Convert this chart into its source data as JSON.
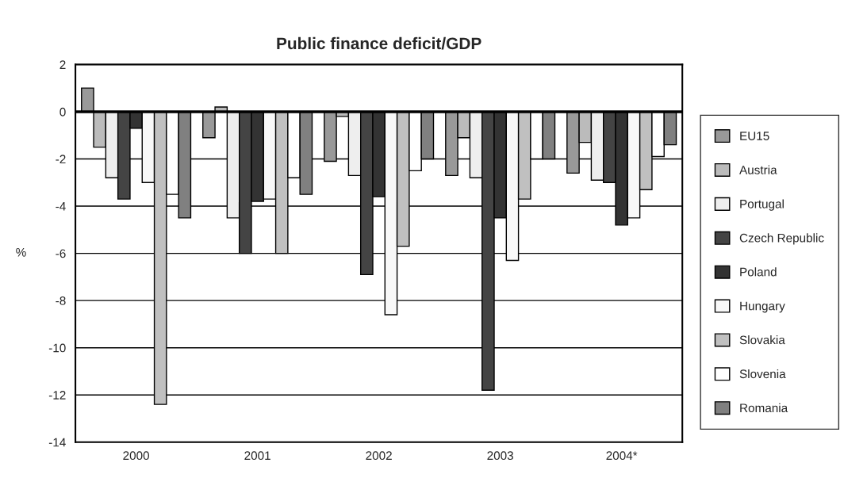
{
  "chart_data": {
    "type": "bar",
    "title": "Public finance deficit/GDP",
    "ylabel": "%",
    "categories": [
      "2000",
      "2001",
      "2002",
      "2003",
      "2004*"
    ],
    "series": [
      {
        "name": "EU15",
        "color": "#999999",
        "values": [
          1.0,
          -1.1,
          -2.1,
          -2.7,
          -2.6
        ]
      },
      {
        "name": "Austria",
        "color": "#bbbbbb",
        "values": [
          -1.5,
          0.2,
          -0.2,
          -1.1,
          -1.3
        ]
      },
      {
        "name": "Portugal",
        "color": "#eeeeee",
        "values": [
          -2.8,
          -4.5,
          -2.7,
          -2.8,
          -2.9
        ]
      },
      {
        "name": "Czech Republic",
        "color": "#444444",
        "values": [
          -3.7,
          -6.0,
          -6.9,
          -11.8,
          -3.0
        ]
      },
      {
        "name": "Poland",
        "color": "#333333",
        "values": [
          -0.7,
          -3.8,
          -3.6,
          -4.5,
          -4.8
        ]
      },
      {
        "name": "Hungary",
        "color": "#f8f8f8",
        "values": [
          -3.0,
          -3.7,
          -8.6,
          -6.3,
          -4.5
        ]
      },
      {
        "name": "Slovakia",
        "color": "#c0c0c0",
        "values": [
          -12.4,
          -6.0,
          -5.7,
          -3.7,
          -3.3
        ]
      },
      {
        "name": "Slovenia",
        "color": "#ffffff",
        "values": [
          -3.5,
          -2.8,
          -2.5,
          -2.0,
          -1.9
        ]
      },
      {
        "name": "Romania",
        "color": "#808080",
        "values": [
          -4.5,
          -3.5,
          -2.0,
          -2.0,
          -1.4
        ]
      }
    ],
    "ylim": [
      -14,
      2
    ],
    "yticks": [
      -14,
      -12,
      -10,
      -8,
      -6,
      -4,
      -2,
      0,
      2
    ],
    "grid": "y",
    "legend": "right"
  }
}
